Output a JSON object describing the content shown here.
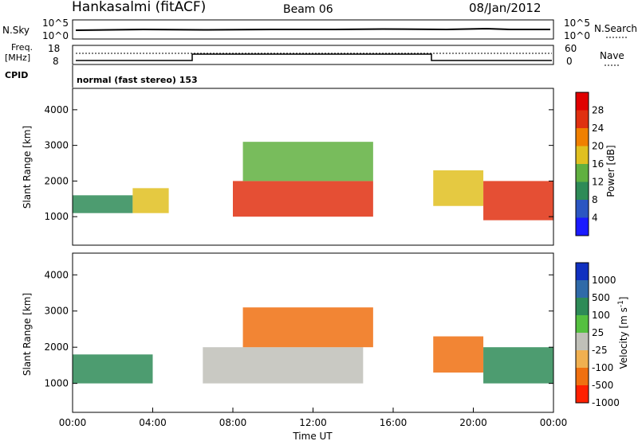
{
  "header": {
    "station": "Hankasalmi (fitACF)",
    "beam": "Beam 06",
    "date": "08/Jan/2012"
  },
  "panels": {
    "nsky": {
      "label": "N.Sky",
      "left_ticks": [
        "10^5",
        "10^0"
      ],
      "right_ticks": [
        "10^5",
        "10^0"
      ],
      "right_label": "N.Search"
    },
    "freq": {
      "label_line1": "Freq.",
      "label_line2": "[MHz]",
      "left_ticks": [
        "18",
        "8"
      ],
      "right_ticks": [
        "60",
        "0"
      ],
      "right_label": "Nave",
      "cpid_label": "CPID",
      "cpid_text": "normal (fast stereo) 153"
    }
  },
  "colorbars": {
    "power": {
      "title": "Power [dB]",
      "ticks": [
        "28",
        "24",
        "20",
        "16",
        "12",
        "8",
        "4"
      ],
      "colors": [
        "#1a1aff",
        "#2b56c2",
        "#2e8b57",
        "#60b040",
        "#e0c020",
        "#f08000",
        "#e03010",
        "#e00000"
      ]
    },
    "velocity": {
      "title": "Velocity [m s",
      "title_exp": "-1",
      "title_end": "]",
      "ticks": [
        "1000",
        "500",
        "100",
        "25",
        "-25",
        "-100",
        "-500",
        "-1000"
      ],
      "colors": [
        "#1030c0",
        "#2f6aa8",
        "#2e8b57",
        "#55c040",
        "#c0c0b8",
        "#f0b050",
        "#f07010",
        "#ff2000"
      ]
    }
  },
  "chart_data": [
    {
      "type": "heatmap",
      "name": "power",
      "xlabel": "",
      "ylabel": "Slant Range [km]",
      "y_ticks": [
        "1000",
        "2000",
        "3000",
        "4000"
      ],
      "xlim": [
        0,
        24
      ],
      "ylim": [
        200,
        4600
      ],
      "blobs": [
        {
          "t0": 0.0,
          "t1": 3.0,
          "r0": 1100,
          "r1": 1600,
          "level": 10
        },
        {
          "t0": 3.0,
          "t1": 4.8,
          "r0": 1100,
          "r1": 1800,
          "level": 18
        },
        {
          "t0": 8.0,
          "t1": 15.0,
          "r0": 1000,
          "r1": 2000,
          "level": 24
        },
        {
          "t0": 8.5,
          "t1": 15.0,
          "r0": 2000,
          "r1": 3100,
          "level": 14
        },
        {
          "t0": 18.0,
          "t1": 20.5,
          "r0": 1300,
          "r1": 2300,
          "level": 16
        },
        {
          "t0": 20.5,
          "t1": 24.0,
          "r0": 900,
          "r1": 2000,
          "level": 26
        }
      ]
    },
    {
      "type": "heatmap",
      "name": "velocity",
      "xlabel": "Time UT",
      "ylabel": "Slant Range [km]",
      "x_ticks": [
        "00:00",
        "04:00",
        "08:00",
        "12:00",
        "16:00",
        "20:00",
        "00:00"
      ],
      "y_ticks": [
        "1000",
        "2000",
        "3000",
        "4000"
      ],
      "xlim": [
        0,
        24
      ],
      "ylim": [
        200,
        4600
      ],
      "blobs": [
        {
          "t0": 0.0,
          "t1": 4.0,
          "r0": 1000,
          "r1": 1800,
          "velocity": 100
        },
        {
          "t0": 6.5,
          "t1": 14.5,
          "r0": 1000,
          "r1": 2000,
          "velocity": 0
        },
        {
          "t0": 8.5,
          "t1": 15.0,
          "r0": 2000,
          "r1": 3100,
          "velocity": -200
        },
        {
          "t0": 18.0,
          "t1": 20.5,
          "r0": 1300,
          "r1": 2300,
          "velocity": -150
        },
        {
          "t0": 20.5,
          "t1": 24.0,
          "r0": 1000,
          "r1": 2000,
          "velocity": 200
        }
      ]
    }
  ]
}
